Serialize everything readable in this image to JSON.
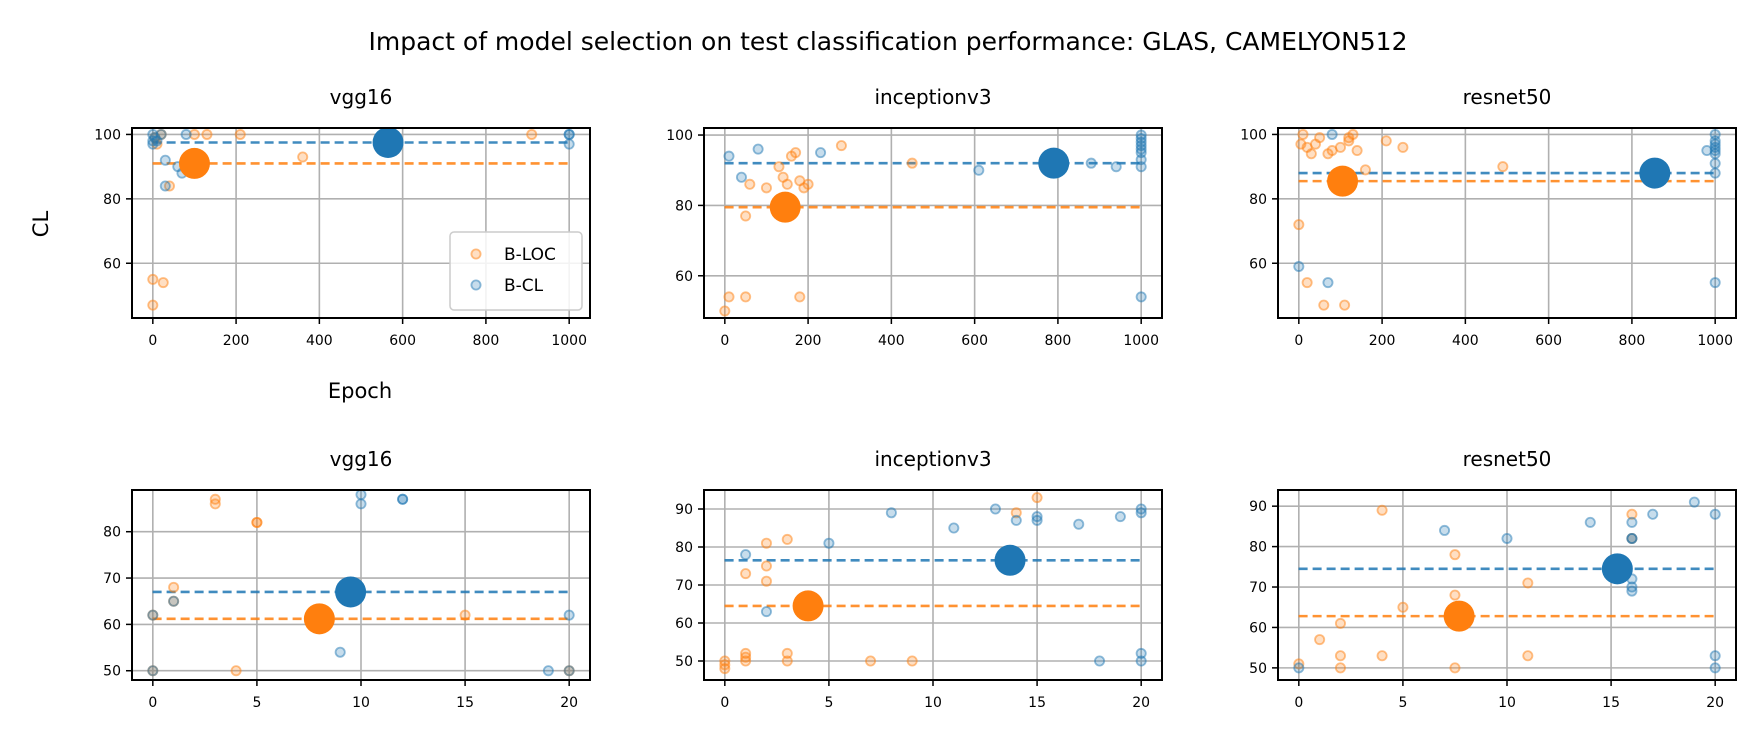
{
  "figure_title": "Impact of model selection on test classification performance: GLAS, CAMELYON512",
  "colors": {
    "b_loc": "#ff7f0e",
    "b_cl": "#1f77b4",
    "grid": "#b0b0b0"
  },
  "legend": {
    "entries": [
      "B-LOC",
      "B-CL"
    ],
    "location": "lower-right of first subplot"
  },
  "shared_labels": {
    "ylabel": "CL",
    "xlabel": "Epoch"
  },
  "chart_data": [
    {
      "type": "scatter",
      "title": "vgg16",
      "xlim": [
        -50,
        1050
      ],
      "ylim": [
        43,
        102
      ],
      "xticks": [
        0,
        200,
        400,
        600,
        800,
        1000
      ],
      "yticks": [
        60,
        80,
        100
      ],
      "series": [
        {
          "name": "B-LOC",
          "x": [
            0,
            0,
            5,
            10,
            20,
            25,
            40,
            80,
            100,
            130,
            210,
            360,
            910
          ],
          "y": [
            47,
            55,
            99,
            97,
            100,
            54,
            84,
            90,
            100,
            100,
            100,
            93,
            100
          ],
          "selected": {
            "x": 100,
            "y": 91
          },
          "mean": 91
        },
        {
          "name": "B-CL",
          "x": [
            0,
            0,
            0,
            5,
            10,
            20,
            30,
            30,
            60,
            70,
            80,
            1000,
            1000,
            1000
          ],
          "y": [
            98,
            100,
            97,
            99,
            98,
            100,
            92,
            84,
            90,
            88,
            100,
            100,
            100,
            97
          ],
          "selected": {
            "x": 565,
            "y": 97.5
          },
          "mean": 97.5
        }
      ]
    },
    {
      "type": "scatter",
      "title": "inceptionv3",
      "xlim": [
        -50,
        1050
      ],
      "ylim": [
        48,
        102
      ],
      "xticks": [
        0,
        200,
        400,
        600,
        800,
        1000
      ],
      "yticks": [
        60,
        80,
        100
      ],
      "series": [
        {
          "name": "B-LOC",
          "x": [
            0,
            10,
            50,
            50,
            60,
            100,
            140,
            150,
            160,
            170,
            180,
            180,
            190,
            200,
            280,
            450,
            130
          ],
          "y": [
            50,
            54,
            54,
            77,
            86,
            85,
            88,
            86,
            94,
            95,
            87,
            54,
            85,
            86,
            97,
            92,
            91
          ],
          "selected": {
            "x": 145,
            "y": 79.5
          },
          "mean": 79.5
        },
        {
          "name": "B-CL",
          "x": [
            10,
            40,
            80,
            230,
            610,
            880,
            940,
            1000,
            1000,
            1000,
            1000,
            1000,
            1000,
            1000,
            1000,
            1000
          ],
          "y": [
            94,
            88,
            96,
            95,
            90,
            92,
            91,
            100,
            99,
            98,
            97,
            96,
            95,
            93,
            91,
            54
          ],
          "selected": {
            "x": 790,
            "y": 92
          },
          "mean": 92
        }
      ]
    },
    {
      "type": "scatter",
      "title": "resnet50",
      "xlim": [
        -50,
        1050
      ],
      "ylim": [
        43,
        102
      ],
      "xticks": [
        0,
        200,
        400,
        600,
        800,
        1000
      ],
      "yticks": [
        60,
        80,
        100
      ],
      "series": [
        {
          "name": "B-LOC",
          "x": [
            0,
            5,
            10,
            20,
            20,
            30,
            40,
            50,
            60,
            70,
            80,
            100,
            120,
            120,
            130,
            140,
            210,
            250,
            490,
            160,
            110
          ],
          "y": [
            72,
            97,
            100,
            54,
            96,
            94,
            97,
            99,
            47,
            94,
            95,
            96,
            98,
            99,
            100,
            95,
            98,
            96,
            90,
            89,
            47
          ],
          "selected": {
            "x": 105,
            "y": 85.5
          },
          "mean": 85.5
        },
        {
          "name": "B-CL",
          "x": [
            0,
            70,
            80,
            1000,
            1000,
            1000,
            1000,
            1000,
            1000,
            1000,
            1000,
            980,
            1000
          ],
          "y": [
            59,
            54,
            100,
            100,
            98,
            97,
            96,
            95,
            94,
            91,
            88,
            95,
            54
          ],
          "selected": {
            "x": 855,
            "y": 88
          },
          "mean": 88
        }
      ]
    },
    {
      "type": "scatter",
      "title": "vgg16",
      "xlim": [
        -1,
        21
      ],
      "ylim": [
        48,
        89
      ],
      "xticks": [
        0,
        5,
        10,
        15,
        20
      ],
      "yticks": [
        50,
        60,
        70,
        80
      ],
      "series": [
        {
          "name": "B-LOC",
          "x": [
            0,
            0,
            1,
            1,
            3,
            3,
            4,
            5,
            5,
            15,
            20
          ],
          "y": [
            50,
            62,
            65,
            68,
            86,
            87,
            50,
            82,
            82,
            62,
            50
          ],
          "selected": {
            "x": 8,
            "y": 61.2
          },
          "mean": 61.2
        },
        {
          "name": "B-CL",
          "x": [
            0,
            0,
            1,
            9,
            10,
            10,
            12,
            12,
            19,
            20,
            20
          ],
          "y": [
            62,
            50,
            65,
            54,
            86,
            88,
            87,
            87,
            50,
            62,
            50
          ],
          "selected": {
            "x": 9.5,
            "y": 67
          },
          "mean": 67
        }
      ]
    },
    {
      "type": "scatter",
      "title": "inceptionv3",
      "xlim": [
        -1,
        21
      ],
      "ylim": [
        45,
        95
      ],
      "xticks": [
        0,
        5,
        10,
        15,
        20
      ],
      "yticks": [
        50,
        60,
        70,
        80,
        90
      ],
      "series": [
        {
          "name": "B-LOC",
          "x": [
            0,
            0,
            0,
            1,
            1,
            1,
            1,
            2,
            2,
            2,
            3,
            3,
            3,
            7,
            9,
            14,
            15
          ],
          "y": [
            48,
            49,
            50,
            50,
            51,
            52,
            73,
            71,
            75,
            81,
            52,
            50,
            82,
            50,
            50,
            89,
            93
          ],
          "selected": {
            "x": 4,
            "y": 64.5
          },
          "mean": 64.5
        },
        {
          "name": "B-CL",
          "x": [
            1,
            2,
            5,
            8,
            11,
            13,
            14,
            15,
            15,
            17,
            18,
            19,
            20,
            20,
            20,
            20
          ],
          "y": [
            78,
            63,
            81,
            89,
            85,
            90,
            87,
            88,
            87,
            86,
            50,
            88,
            89,
            90,
            52,
            50
          ],
          "selected": {
            "x": 13.7,
            "y": 76.5
          },
          "mean": 76.5
        }
      ]
    },
    {
      "type": "scatter",
      "title": "resnet50",
      "xlim": [
        -1,
        21
      ],
      "ylim": [
        47,
        94
      ],
      "xticks": [
        0,
        5,
        10,
        15,
        20
      ],
      "yticks": [
        50,
        60,
        70,
        80,
        90
      ],
      "series": [
        {
          "name": "B-LOC",
          "x": [
            0,
            1,
            2,
            2,
            2,
            4,
            4,
            5,
            7.5,
            7.5,
            7.5,
            11,
            11,
            15,
            16,
            16
          ],
          "y": [
            51,
            57,
            61,
            53,
            50,
            89,
            53,
            65,
            78,
            68,
            50,
            71,
            53,
            73,
            88,
            82
          ],
          "selected": {
            "x": 7.7,
            "y": 62.8
          },
          "mean": 62.8
        },
        {
          "name": "B-CL",
          "x": [
            0,
            7,
            10,
            14,
            15,
            16,
            16,
            16,
            16,
            16,
            16,
            17,
            19,
            20,
            20,
            20
          ],
          "y": [
            50,
            84,
            82,
            86,
            73,
            82,
            86,
            82,
            72,
            70,
            69,
            88,
            91,
            88,
            53,
            50
          ],
          "selected": {
            "x": 15.3,
            "y": 74.5
          },
          "mean": 74.5
        }
      ]
    }
  ]
}
